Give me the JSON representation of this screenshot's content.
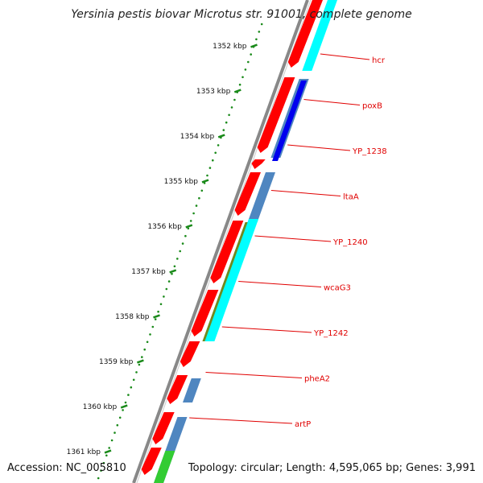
{
  "title": "Yersinia pestis biovar Microtus str. 91001, complete genome",
  "accession": "Accession: NC_005810",
  "summary": "Topology: circular; Length: 4,595,065 bp; Genes: 3,991",
  "colors": {
    "cds_red": "#ff0000",
    "cyan": "#00ffff",
    "steel_blue": "#4f86c0",
    "blue": "#0000ee",
    "olive": "#6f8a1e",
    "green": "#33cc33",
    "backbone": "#888888",
    "tick_green": "#1a8a1a",
    "label_red": "#e00000"
  },
  "kbp_ticks": [
    {
      "label": "1352 kbp"
    },
    {
      "label": "1353 kbp"
    },
    {
      "label": "1354 kbp"
    },
    {
      "label": "1355 kbp"
    },
    {
      "label": "1356 kbp"
    },
    {
      "label": "1357 kbp"
    },
    {
      "label": "1358 kbp"
    },
    {
      "label": "1359 kbp"
    },
    {
      "label": "1360 kbp"
    },
    {
      "label": "1361 kbp"
    }
  ],
  "gene_labels": [
    {
      "name": "hcr"
    },
    {
      "name": "poxB"
    },
    {
      "name": "YP_1238"
    },
    {
      "name": "ltaA"
    },
    {
      "name": "YP_1240"
    },
    {
      "name": "wcaG3"
    },
    {
      "name": "YP_1242"
    },
    {
      "name": "pheA2"
    },
    {
      "name": "artP"
    }
  ]
}
